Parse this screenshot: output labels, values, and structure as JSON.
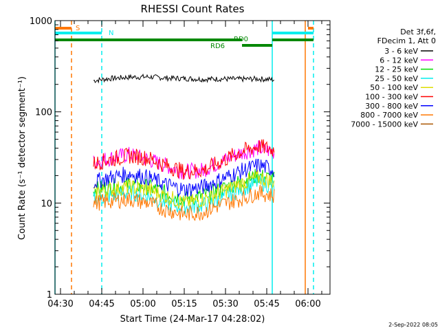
{
  "chart_data": {
    "type": "line",
    "title": "RHESSI Count Rates",
    "xlabel": "Start Time (24-Mar-17 04:28:02)",
    "ylabel": "Count Rate (s⁻¹ detector segment⁻¹)",
    "y_scale": "log",
    "ylim": [
      1,
      1000
    ],
    "xlim": [
      "04:28",
      "06:08"
    ],
    "x_ticks": [
      "04:30",
      "04:45",
      "05:00",
      "05:15",
      "05:30",
      "05:45",
      "06:00"
    ],
    "y_ticks": [
      "1",
      "10",
      "100",
      "1000"
    ],
    "legend_header": [
      "Det 3f,6f,",
      "FDecim 1, Att 0"
    ],
    "legend_placement": "right",
    "footer": "2-Sep-2022 08:05",
    "x": [
      "04:42",
      "04:48",
      "04:55",
      "05:02",
      "05:08",
      "05:15",
      "05:22",
      "05:28",
      "05:35",
      "05:42",
      "05:48"
    ],
    "series": [
      {
        "name": "3 - 6 keV",
        "color": "#000000",
        "values": [
          220,
          232,
          240,
          242,
          235,
          232,
          228,
          230,
          228,
          230,
          225
        ]
      },
      {
        "name": "6 - 12 keV",
        "color": "#ff00ff",
        "values": [
          28,
          31,
          34,
          30,
          26,
          22,
          23,
          28,
          35,
          40,
          36
        ]
      },
      {
        "name": "12 - 25 keV",
        "color": "#00dd00",
        "values": [
          14,
          15,
          16,
          15,
          13,
          11,
          12,
          14,
          17,
          20,
          18
        ]
      },
      {
        "name": "25 - 50 keV",
        "color": "#00eeee",
        "values": [
          11,
          12,
          13,
          12,
          10,
          9,
          9.5,
          11,
          14,
          17,
          15
        ]
      },
      {
        "name": "50 - 100 keV",
        "color": "#dddd00",
        "values": [
          13,
          14,
          15,
          14,
          12,
          10,
          11,
          13,
          16,
          19,
          17
        ]
      },
      {
        "name": "100 - 300 keV",
        "color": "#ff0000",
        "values": [
          27,
          30,
          33,
          31,
          26,
          22,
          23,
          28,
          36,
          42,
          38
        ]
      },
      {
        "name": "300 - 800 keV",
        "color": "#0000ff",
        "values": [
          17,
          19,
          21,
          19,
          16,
          14,
          15,
          18,
          22,
          26,
          23
        ]
      },
      {
        "name": "800 - 7000 keV",
        "color": "#ff7700",
        "values": [
          10,
          10.5,
          11,
          10,
          8.5,
          7.5,
          8,
          9.5,
          11,
          13,
          12
        ]
      },
      {
        "name": "7000 - 15000 keV",
        "color": "#aa5500",
        "values": [
          null,
          null,
          null,
          null,
          null,
          null,
          null,
          null,
          null,
          null,
          null
        ]
      }
    ],
    "annotations": [
      {
        "label": "S",
        "color": "#ff7700"
      },
      {
        "label": "N",
        "color": "#00eeee"
      },
      {
        "label": "RD0",
        "color": "#008800"
      },
      {
        "label": "RD6",
        "color": "#008800"
      }
    ],
    "marker_lines": [
      {
        "time": "04:28",
        "color": "#00eeee",
        "style": "solid"
      },
      {
        "time": "04:34",
        "color": "#ff7700",
        "style": "dashed"
      },
      {
        "time": "04:45",
        "color": "#00eeee",
        "style": "dashed"
      },
      {
        "time": "05:47",
        "color": "#00eeee",
        "style": "solid"
      },
      {
        "time": "05:59",
        "color": "#ff7700",
        "style": "solid"
      },
      {
        "time": "06:02",
        "color": "#00eeee",
        "style": "dashed"
      }
    ]
  }
}
